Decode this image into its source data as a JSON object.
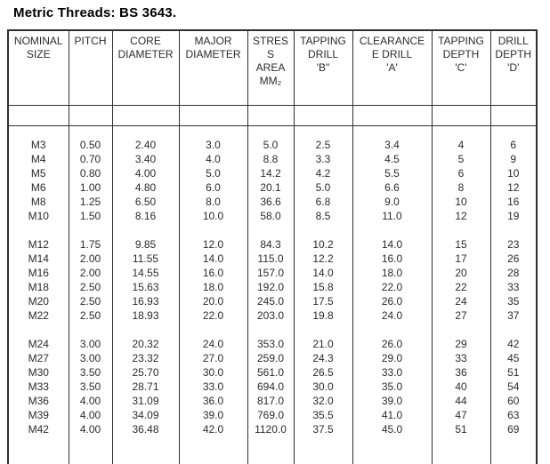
{
  "title": "Metric Threads: BS 3643.",
  "table": {
    "columns": [
      {
        "id": "nominal-size",
        "lines": [
          "NOMINAL",
          "SIZE"
        ]
      },
      {
        "id": "pitch",
        "lines": [
          "PITCH"
        ]
      },
      {
        "id": "core-diameter",
        "lines": [
          "CORE",
          "DIAMETER"
        ]
      },
      {
        "id": "major-diameter",
        "lines": [
          "MAJOR",
          "DIAMETER"
        ]
      },
      {
        "id": "stress-area",
        "lines": [
          "STRES",
          "S",
          "AREA",
          "MM₂"
        ]
      },
      {
        "id": "tapping-drill",
        "lines": [
          "TAPPING",
          "DRILL",
          "'B\""
        ]
      },
      {
        "id": "clearance-drill",
        "lines": [
          "CLEARANCE",
          "E DRILL",
          "'A'"
        ]
      },
      {
        "id": "tapping-depth",
        "lines": [
          "TAPPING",
          "DEPTH",
          "'C'"
        ]
      },
      {
        "id": "drill-depth",
        "lines": [
          "DRILL",
          "DEPTH",
          "'D'"
        ]
      }
    ],
    "groups": [
      {
        "rows": [
          [
            "M3",
            "0.50",
            "2.40",
            "3.0",
            "5.0",
            "2.5",
            "3.4",
            "4",
            "6"
          ],
          [
            "M4",
            "0.70",
            "3.40",
            "4.0",
            "8.8",
            "3.3",
            "4.5",
            "5",
            "9"
          ],
          [
            "M5",
            "0.80",
            "4.00",
            "5.0",
            "14.2",
            "4.2",
            "5.5",
            "6",
            "10"
          ],
          [
            "M6",
            "1.00",
            "4.80",
            "6.0",
            "20.1",
            "5.0",
            "6.6",
            "8",
            "12"
          ],
          [
            "M8",
            "1.25",
            "6.50",
            "8.0",
            "36.6",
            "6.8",
            "9.0",
            "10",
            "16"
          ],
          [
            "M10",
            "1.50",
            "8.16",
            "10.0",
            "58.0",
            "8.5",
            "11.0",
            "12",
            "19"
          ]
        ]
      },
      {
        "rows": [
          [
            "M12",
            "1.75",
            "9.85",
            "12.0",
            "84.3",
            "10.2",
            "14.0",
            "15",
            "23"
          ],
          [
            "M14",
            "2.00",
            "11.55",
            "14.0",
            "115.0",
            "12.2",
            "16.0",
            "17",
            "26"
          ],
          [
            "M16",
            "2.00",
            "14.55",
            "16.0",
            "157.0",
            "14.0",
            "18.0",
            "20",
            "28"
          ],
          [
            "M18",
            "2.50",
            "15.63",
            "18.0",
            "192.0",
            "15.8",
            "22.0",
            "22",
            "33"
          ],
          [
            "M20",
            "2.50",
            "16.93",
            "20.0",
            "245.0",
            "17.5",
            "26.0",
            "24",
            "35"
          ],
          [
            "M22",
            "2.50",
            "18.93",
            "22.0",
            "203.0",
            "19.8",
            "24.0",
            "27",
            "37"
          ]
        ]
      },
      {
        "rows": [
          [
            "M24",
            "3.00",
            "20.32",
            "24.0",
            "353.0",
            "21.0",
            "26.0",
            "29",
            "42"
          ],
          [
            "M27",
            "3.00",
            "23.32",
            "27.0",
            "259.0",
            "24.3",
            "29.0",
            "33",
            "45"
          ],
          [
            "M30",
            "3.50",
            "25.70",
            "30.0",
            "561.0",
            "26.5",
            "33.0",
            "36",
            "51"
          ],
          [
            "M33",
            "3.50",
            "28.71",
            "33.0",
            "694.0",
            "30.0",
            "35.0",
            "40",
            "54"
          ],
          [
            "M36",
            "4.00",
            "31.09",
            "36.0",
            "817.0",
            "32.0",
            "39.0",
            "44",
            "60"
          ],
          [
            "M39",
            "4.00",
            "34.09",
            "39.0",
            "769.0",
            "35.5",
            "41.0",
            "47",
            "63"
          ],
          [
            "M42",
            "4.00",
            "36.48",
            "42.0",
            "1120.0",
            "37.5",
            "45.0",
            "51",
            "69"
          ]
        ]
      }
    ]
  }
}
